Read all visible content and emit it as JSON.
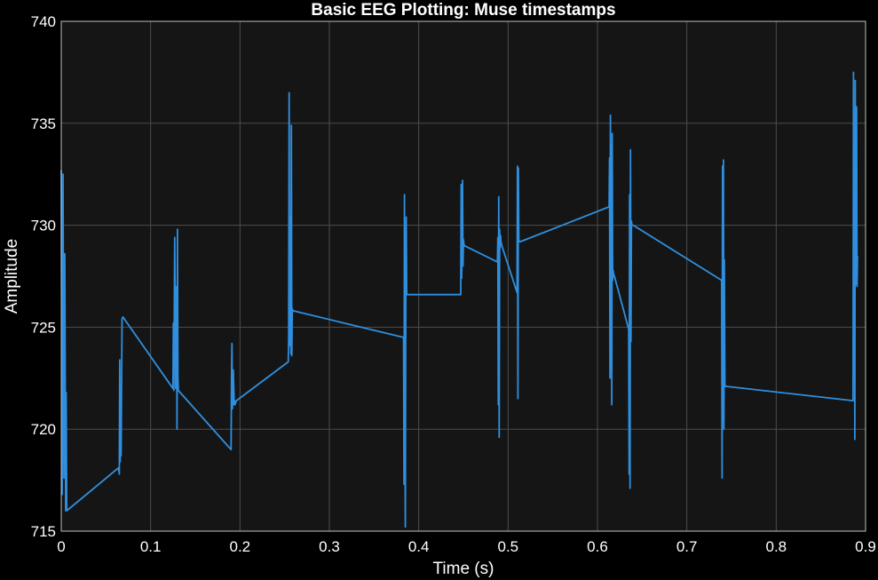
{
  "colors": {
    "background": "#000000",
    "plot_background": "#151515",
    "grid": "#4d4d4d",
    "axis": "#bfbfbf",
    "text": "#ffffff",
    "line": "#2f8fde"
  },
  "chart_data": {
    "type": "line",
    "title": "Basic EEG Plotting: Muse timestamps",
    "xlabel": "Time (s)",
    "ylabel": "Amplitude",
    "xlim": [
      0,
      0.9
    ],
    "ylim": [
      715,
      740
    ],
    "grid": true,
    "xticks": [
      "0",
      "0.1",
      "0.2",
      "0.3",
      "0.4",
      "0.5",
      "0.6",
      "0.7",
      "0.8",
      "0.9"
    ],
    "yticks": [
      "715",
      "720",
      "725",
      "730",
      "735",
      "740"
    ],
    "series": [
      {
        "x": [
          0,
          0.001,
          0.002,
          0.003,
          0.004,
          0.005,
          0.0055,
          0.0062,
          0.064,
          0.065,
          0.0655,
          0.066,
          0.0665,
          0.067,
          0.0675,
          0.068,
          0.069,
          0.125,
          0.1255,
          0.126,
          0.127,
          0.128,
          0.1285,
          0.129,
          0.1295,
          0.13,
          0.1305,
          0.131,
          0.19,
          0.1905,
          0.191,
          0.1915,
          0.192,
          0.1925,
          0.1935,
          0.194,
          0.1945,
          0.195,
          0.196,
          0.254,
          0.2545,
          0.255,
          0.2555,
          0.256,
          0.2565,
          0.257,
          0.2575,
          0.258,
          0.2585,
          0.259,
          0.26,
          0.383,
          0.3835,
          0.384,
          0.3845,
          0.385,
          0.3855,
          0.386,
          0.3865,
          0.387,
          0.388,
          0.447,
          0.4475,
          0.448,
          0.4485,
          0.449,
          0.4495,
          0.45,
          0.4505,
          0.451,
          0.488,
          0.4885,
          0.489,
          0.4895,
          0.49,
          0.4905,
          0.491,
          0.4915,
          0.492,
          0.493,
          0.51,
          0.5105,
          0.511,
          0.5115,
          0.512,
          0.5125,
          0.513,
          0.5135,
          0.514,
          0.613,
          0.6135,
          0.614,
          0.6145,
          0.615,
          0.6155,
          0.616,
          0.6165,
          0.617,
          0.6175,
          0.618,
          0.619,
          0.635,
          0.6355,
          0.636,
          0.6365,
          0.637,
          0.6375,
          0.638,
          0.6385,
          0.639,
          0.64,
          0.739,
          0.7395,
          0.74,
          0.7405,
          0.741,
          0.7415,
          0.742,
          0.7425,
          0.743,
          0.744,
          0.886,
          0.8865,
          0.887,
          0.8875,
          0.888,
          0.8885,
          0.889,
          0.8895,
          0.89,
          0.8905,
          0.891
        ],
        "y": [
          732.7,
          716.8,
          732.5,
          717.6,
          728.6,
          716.0,
          721.8,
          716.0,
          718.1,
          717.8,
          723.4,
          718.4,
          721.4,
          718.7,
          721.9,
          725.4,
          725.5,
          722.0,
          725.2,
          721.9,
          729.4,
          722.0,
          723.8,
          727.0,
          720.0,
          729.8,
          722.5,
          721.9,
          719.0,
          722.5,
          724.2,
          721.0,
          721.5,
          722.9,
          721.2,
          721.4,
          721.2,
          721.3,
          721.4,
          723.3,
          724.5,
          736.5,
          727.0,
          724.1,
          730.4,
          723.7,
          734.9,
          723.6,
          725.9,
          725.8,
          725.8,
          724.5,
          717.3,
          731.5,
          720.9,
          715.2,
          726.9,
          730.4,
          726.7,
          726.6,
          726.6,
          726.6,
          732.0,
          727.4,
          728.8,
          732.2,
          728.0,
          729.3,
          729.1,
          729.0,
          728.2,
          729.4,
          721.2,
          731.4,
          719.6,
          729.8,
          728.9,
          729.5,
          729.2,
          729.0,
          726.7,
          732.9,
          721.5,
          732.8,
          729.3,
          729.2,
          729.2,
          729.2,
          729.2,
          730.9,
          733.3,
          722.5,
          735.4,
          722.9,
          733.9,
          721.2,
          734.5,
          727.3,
          727.8,
          727.6,
          727.5,
          724.9,
          717.8,
          731.5,
          717.1,
          733.7,
          724.3,
          730.2,
          730.0,
          730.0,
          730.0,
          727.3,
          717.6,
          732.9,
          720.5,
          733.2,
          720.0,
          728.3,
          722.2,
          722.1,
          722.1,
          721.4,
          737.5,
          726.1,
          735.0,
          719.5,
          737.1,
          727.1,
          728.6,
          735.8,
          727.0,
          728.5
        ]
      }
    ]
  }
}
